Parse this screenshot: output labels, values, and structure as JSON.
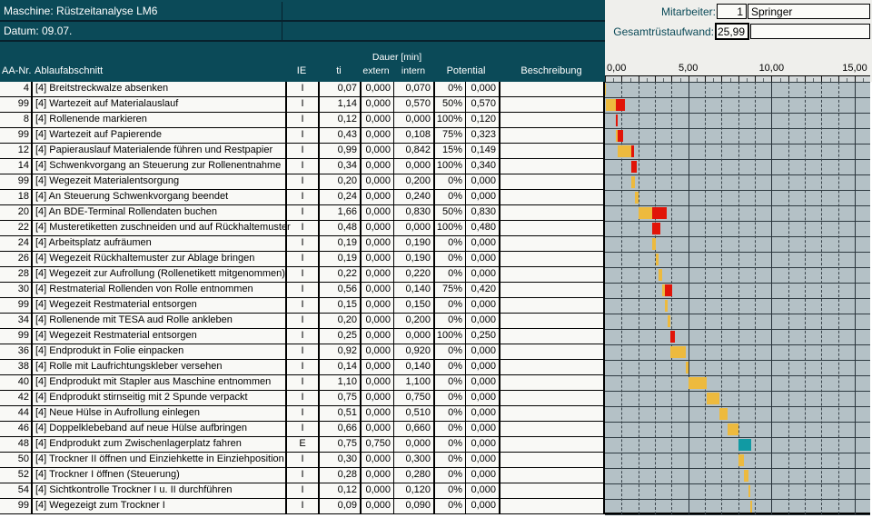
{
  "header": {
    "machine_label": "Maschine: Rüstzeitanalyse LM6",
    "date_label": "Datum: 09.07.",
    "mitarbeiter_label": "Mitarbeiter:",
    "mitarbeiter_value": "1",
    "mitarbeiter_name": "Springer",
    "gesamt_label": "Gesamtrüstaufwand:",
    "gesamt_value": "25,99"
  },
  "columns": {
    "aa": "AA-Nr.",
    "ablauf": "Ablaufabschnitt",
    "ie": "IE",
    "ti": "ti",
    "dauer": "Dauer [min]",
    "extern": "extern",
    "intern": "intern",
    "potential": "Potential",
    "beschreibung": "Beschreibung"
  },
  "rows": [
    {
      "aa": "4",
      "name": "[4] Breitstreckwalze absenken",
      "ie": "I",
      "ti": "0,07",
      "extern": "0,000",
      "intern": "0,070",
      "pct": "0%",
      "pot": "0,000",
      "beschr": ""
    },
    {
      "aa": "99",
      "name": "[4] Wartezeit auf Materialauslauf",
      "ie": "I",
      "ti": "1,14",
      "extern": "0,000",
      "intern": "0,570",
      "pct": "50%",
      "pot": "0,570",
      "beschr": ""
    },
    {
      "aa": "8",
      "name": "[4] Rollenende markieren",
      "ie": "I",
      "ti": "0,12",
      "extern": "0,000",
      "intern": "0,000",
      "pct": "100%",
      "pot": "0,120",
      "beschr": ""
    },
    {
      "aa": "99",
      "name": "[4] Wartezeit auf Papierende",
      "ie": "I",
      "ti": "0,43",
      "extern": "0,000",
      "intern": "0,108",
      "pct": "75%",
      "pot": "0,323",
      "beschr": ""
    },
    {
      "aa": "12",
      "name": "[4] Papierauslauf Materialende führen und Restpapier",
      "ie": "I",
      "ti": "0,99",
      "extern": "0,000",
      "intern": "0,842",
      "pct": "15%",
      "pot": "0,149",
      "beschr": ""
    },
    {
      "aa": "14",
      "name": "[4] Schwenkvorgang an Steuerung zur Rollenentnahme",
      "ie": "I",
      "ti": "0,34",
      "extern": "0,000",
      "intern": "0,000",
      "pct": "100%",
      "pot": "0,340",
      "beschr": ""
    },
    {
      "aa": "99",
      "name": "[4] Wegezeit Materialentsorgung",
      "ie": "I",
      "ti": "0,20",
      "extern": "0,000",
      "intern": "0,200",
      "pct": "0%",
      "pot": "0,000",
      "beschr": ""
    },
    {
      "aa": "18",
      "name": "[4] An Steuerung Schwenkvorgang beendet",
      "ie": "I",
      "ti": "0,24",
      "extern": "0,000",
      "intern": "0,240",
      "pct": "0%",
      "pot": "0,000",
      "beschr": ""
    },
    {
      "aa": "20",
      "name": "[4] An BDE-Terminal Rollendaten buchen",
      "ie": "I",
      "ti": "1,66",
      "extern": "0,000",
      "intern": "0,830",
      "pct": "50%",
      "pot": "0,830",
      "beschr": ""
    },
    {
      "aa": "22",
      "name": "[4] Musteretiketten zuschneiden und auf Rückhaltemuster",
      "ie": "I",
      "ti": "0,48",
      "extern": "0,000",
      "intern": "0,000",
      "pct": "100%",
      "pot": "0,480",
      "beschr": ""
    },
    {
      "aa": "24",
      "name": "[4] Arbeitsplatz aufräumen",
      "ie": "I",
      "ti": "0,19",
      "extern": "0,000",
      "intern": "0,190",
      "pct": "0%",
      "pot": "0,000",
      "beschr": ""
    },
    {
      "aa": "26",
      "name": "[4] Wegezeit Rückhaltemuster zur Ablage bringen",
      "ie": "I",
      "ti": "0,19",
      "extern": "0,000",
      "intern": "0,190",
      "pct": "0%",
      "pot": "0,000",
      "beschr": ""
    },
    {
      "aa": "28",
      "name": "[4] Wegezeit zur Aufrollung (Rollenetikett mitgenommen)",
      "ie": "I",
      "ti": "0,22",
      "extern": "0,000",
      "intern": "0,220",
      "pct": "0%",
      "pot": "0,000",
      "beschr": ""
    },
    {
      "aa": "30",
      "name": "[4] Restmaterial Rollenden von Rolle entnommen",
      "ie": "I",
      "ti": "0,56",
      "extern": "0,000",
      "intern": "0,140",
      "pct": "75%",
      "pot": "0,420",
      "beschr": ""
    },
    {
      "aa": "99",
      "name": "[4] Wegezeit Restmaterial entsorgen",
      "ie": "I",
      "ti": "0,15",
      "extern": "0,000",
      "intern": "0,150",
      "pct": "0%",
      "pot": "0,000",
      "beschr": ""
    },
    {
      "aa": "34",
      "name": "[4] Rollenende mit TESA aud Rolle ankleben",
      "ie": "I",
      "ti": "0,20",
      "extern": "0,000",
      "intern": "0,200",
      "pct": "0%",
      "pot": "0,000",
      "beschr": ""
    },
    {
      "aa": "99",
      "name": "[4] Wegezeit Restmaterial entsorgen",
      "ie": "I",
      "ti": "0,25",
      "extern": "0,000",
      "intern": "0,000",
      "pct": "100%",
      "pot": "0,250",
      "beschr": ""
    },
    {
      "aa": "36",
      "name": "[4] Endprodukt in Folie einpacken",
      "ie": "I",
      "ti": "0,92",
      "extern": "0,000",
      "intern": "0,920",
      "pct": "0%",
      "pot": "0,000",
      "beschr": ""
    },
    {
      "aa": "38",
      "name": "[4] Rolle mit Laufrichtungskleber versehen",
      "ie": "I",
      "ti": "0,14",
      "extern": "0,000",
      "intern": "0,140",
      "pct": "0%",
      "pot": "0,000",
      "beschr": ""
    },
    {
      "aa": "40",
      "name": "[4] Endprodukt mit Stapler aus Maschine entnommen",
      "ie": "I",
      "ti": "1,10",
      "extern": "0,000",
      "intern": "1,100",
      "pct": "0%",
      "pot": "0,000",
      "beschr": ""
    },
    {
      "aa": "42",
      "name": "[4] Endprodukt stirnseitig mit 2 Spunde verpackt",
      "ie": "I",
      "ti": "0,75",
      "extern": "0,000",
      "intern": "0,750",
      "pct": "0%",
      "pot": "0,000",
      "beschr": ""
    },
    {
      "aa": "44",
      "name": "[4] Neue Hülse in Aufrollung einlegen",
      "ie": "I",
      "ti": "0,51",
      "extern": "0,000",
      "intern": "0,510",
      "pct": "0%",
      "pot": "0,000",
      "beschr": ""
    },
    {
      "aa": "46",
      "name": "[4] Doppelklebeband auf neue Hülse aufbringen",
      "ie": "I",
      "ti": "0,66",
      "extern": "0,000",
      "intern": "0,660",
      "pct": "0%",
      "pot": "0,000",
      "beschr": ""
    },
    {
      "aa": "48",
      "name": "[4] Endprodukt zum Zwischenlagerplatz fahren",
      "ie": "E",
      "ti": "0,75",
      "extern": "0,750",
      "intern": "0,000",
      "pct": "0%",
      "pot": "0,000",
      "beschr": ""
    },
    {
      "aa": "50",
      "name": "[4] Trockner II öffnen und Einziehkette in Einziehposition",
      "ie": "I",
      "ti": "0,30",
      "extern": "0,000",
      "intern": "0,300",
      "pct": "0%",
      "pot": "0,000",
      "beschr": ""
    },
    {
      "aa": "52",
      "name": "[4] Trockner I öffnen (Steuerung)",
      "ie": "I",
      "ti": "0,28",
      "extern": "0,000",
      "intern": "0,280",
      "pct": "0%",
      "pot": "0,000",
      "beschr": ""
    },
    {
      "aa": "54",
      "name": "[4] Sichtkontrolle Trockner I u. II durchführen",
      "ie": "I",
      "ti": "0,12",
      "extern": "0,000",
      "intern": "0,120",
      "pct": "0%",
      "pot": "0,000",
      "beschr": ""
    },
    {
      "aa": "99",
      "name": "[4] Wegezeigt zum Trockner I",
      "ie": "I",
      "ti": "0,09",
      "extern": "0,000",
      "intern": "0,090",
      "pct": "0%",
      "pot": "0,000",
      "beschr": ""
    }
  ],
  "chart_data": {
    "type": "bar",
    "subtype": "gantt-waterfall",
    "unit": "min",
    "xlim": [
      0,
      16
    ],
    "gridline_interval": 1,
    "major_interval": 5,
    "ticks": [
      {
        "x": 0,
        "label": "0,00"
      },
      {
        "x": 5,
        "label": "5,00"
      },
      {
        "x": 10,
        "label": "10,00"
      },
      {
        "x": 15,
        "label": "15,00"
      }
    ],
    "colors": {
      "extern": "#119aa3",
      "intern": "#edba3e",
      "potential": "#e11408"
    },
    "bars": [
      {
        "extern": 0,
        "intern": 0.07,
        "potential": 0
      },
      {
        "extern": 0,
        "intern": 0.57,
        "potential": 0.57
      },
      {
        "extern": 0,
        "intern": 0,
        "potential": 0.12
      },
      {
        "extern": 0,
        "intern": 0.108,
        "potential": 0.323
      },
      {
        "extern": 0,
        "intern": 0.842,
        "potential": 0.149
      },
      {
        "extern": 0,
        "intern": 0,
        "potential": 0.34
      },
      {
        "extern": 0,
        "intern": 0.2,
        "potential": 0
      },
      {
        "extern": 0,
        "intern": 0.24,
        "potential": 0
      },
      {
        "extern": 0,
        "intern": 0.83,
        "potential": 0.83
      },
      {
        "extern": 0,
        "intern": 0,
        "potential": 0.48
      },
      {
        "extern": 0,
        "intern": 0.19,
        "potential": 0
      },
      {
        "extern": 0,
        "intern": 0.19,
        "potential": 0
      },
      {
        "extern": 0,
        "intern": 0.22,
        "potential": 0
      },
      {
        "extern": 0,
        "intern": 0.14,
        "potential": 0.42
      },
      {
        "extern": 0,
        "intern": 0.15,
        "potential": 0
      },
      {
        "extern": 0,
        "intern": 0.2,
        "potential": 0
      },
      {
        "extern": 0,
        "intern": 0,
        "potential": 0.25
      },
      {
        "extern": 0,
        "intern": 0.92,
        "potential": 0
      },
      {
        "extern": 0,
        "intern": 0.14,
        "potential": 0
      },
      {
        "extern": 0,
        "intern": 1.1,
        "potential": 0
      },
      {
        "extern": 0,
        "intern": 0.75,
        "potential": 0
      },
      {
        "extern": 0,
        "intern": 0.51,
        "potential": 0
      },
      {
        "extern": 0,
        "intern": 0.66,
        "potential": 0
      },
      {
        "extern": 0.75,
        "intern": 0,
        "potential": 0
      },
      {
        "extern": 0,
        "intern": 0.3,
        "potential": 0
      },
      {
        "extern": 0,
        "intern": 0.28,
        "potential": 0
      },
      {
        "extern": 0,
        "intern": 0.12,
        "potential": 0
      },
      {
        "extern": 0,
        "intern": 0.09,
        "potential": 0
      }
    ]
  }
}
